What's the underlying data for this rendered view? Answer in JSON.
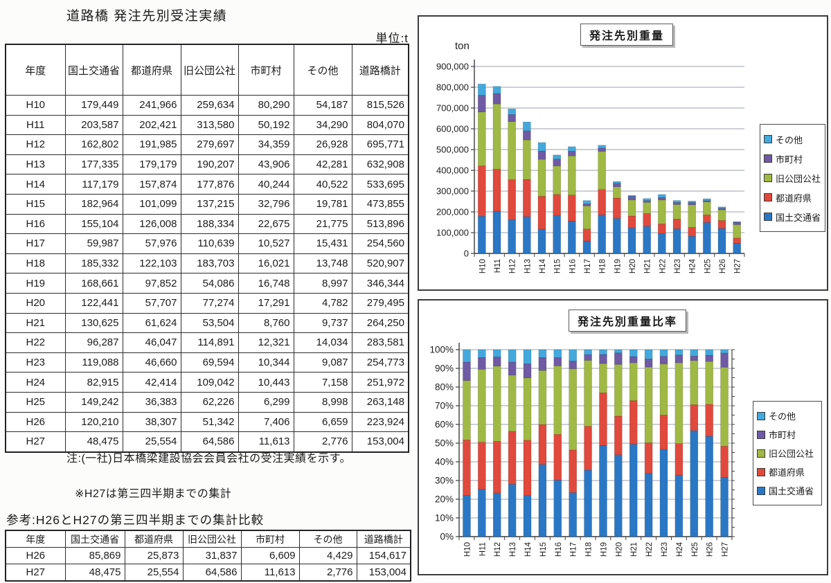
{
  "page": {
    "title": "道路橋 発注先別受注実績",
    "unit_label": "単位:t"
  },
  "main_table": {
    "headers": [
      "年度",
      "国土交通省",
      "都道府県",
      "旧公団公社",
      "市町村",
      "その他",
      "道路橋計"
    ],
    "rows": [
      [
        "H10",
        "179,449",
        "241,966",
        "259,634",
        "80,290",
        "54,187",
        "815,526"
      ],
      [
        "H11",
        "203,587",
        "202,421",
        "313,580",
        "50,192",
        "34,290",
        "804,070"
      ],
      [
        "H12",
        "162,802",
        "191,985",
        "279,697",
        "34,359",
        "26,928",
        "695,771"
      ],
      [
        "H13",
        "177,335",
        "179,179",
        "190,207",
        "43,906",
        "42,281",
        "632,908"
      ],
      [
        "H14",
        "117,179",
        "157,874",
        "177,876",
        "40,244",
        "40,522",
        "533,695"
      ],
      [
        "H15",
        "182,964",
        "101,099",
        "137,215",
        "32,796",
        "19,781",
        "473,855"
      ],
      [
        "H16",
        "155,104",
        "126,008",
        "188,334",
        "22,675",
        "21,775",
        "513,896"
      ],
      [
        "H17",
        "59,987",
        "57,976",
        "110,639",
        "10,527",
        "15,431",
        "254,560"
      ],
      [
        "H18",
        "185,332",
        "122,103",
        "183,703",
        "16,021",
        "13,748",
        "520,907"
      ],
      [
        "H19",
        "168,661",
        "97,852",
        "54,086",
        "16,748",
        "8,997",
        "346,344"
      ],
      [
        "H20",
        "122,441",
        "57,707",
        "77,274",
        "17,291",
        "4,782",
        "279,495"
      ],
      [
        "H21",
        "130,625",
        "61,624",
        "53,504",
        "8,760",
        "9,737",
        "264,250"
      ],
      [
        "H22",
        "96,287",
        "46,047",
        "114,891",
        "12,321",
        "14,034",
        "283,581"
      ],
      [
        "H23",
        "119,088",
        "46,660",
        "69,594",
        "10,344",
        "9,087",
        "254,773"
      ],
      [
        "H24",
        "82,915",
        "42,414",
        "109,042",
        "10,443",
        "7,158",
        "251,972"
      ],
      [
        "H25",
        "149,242",
        "36,383",
        "62,226",
        "6,299",
        "8,998",
        "263,148"
      ],
      [
        "H26",
        "120,210",
        "38,307",
        "51,342",
        "7,406",
        "6,659",
        "223,924"
      ],
      [
        "H27",
        "48,475",
        "25,554",
        "64,586",
        "11,613",
        "2,776",
        "153,004"
      ]
    ]
  },
  "notes": {
    "note1": "注:(一社)日本橋梁建設協会会員会社の受注実績を示す。",
    "note2": "※H27は第三四半期までの集計"
  },
  "reference": {
    "heading": "参考:H26とH27の第三四半期までの集計比較",
    "headers": [
      "年度",
      "国土交通省",
      "都道府県",
      "旧公団公社",
      "市町村",
      "その他",
      "道路橋計"
    ],
    "rows": [
      [
        "H26",
        "85,869",
        "25,873",
        "31,837",
        "6,609",
        "4,429",
        "154,617"
      ],
      [
        "H27",
        "48,475",
        "25,554",
        "64,586",
        "11,613",
        "2,776",
        "153,004"
      ]
    ]
  },
  "chart_data": [
    {
      "type": "bar",
      "stacked": true,
      "percent": false,
      "title": "発注先別重量",
      "ylabel": "ton",
      "ylim": [
        0,
        900000
      ],
      "ytick_step": 100000,
      "grid": true,
      "legend_position": "right",
      "categories": [
        "H10",
        "H11",
        "H12",
        "H13",
        "H14",
        "H15",
        "H16",
        "H17",
        "H18",
        "H19",
        "H20",
        "H21",
        "H22",
        "H23",
        "H24",
        "H25",
        "H26",
        "H27"
      ],
      "series": [
        {
          "name": "国土交通省",
          "color": "#2a78c5",
          "values": [
            179449,
            203587,
            162802,
            177335,
            117179,
            182964,
            155104,
            59987,
            185332,
            168661,
            122441,
            130625,
            96287,
            119088,
            82915,
            149242,
            120210,
            48475
          ]
        },
        {
          "name": "都道府県",
          "color": "#e0493c",
          "values": [
            241966,
            202421,
            191985,
            179179,
            157874,
            101099,
            126008,
            57976,
            122103,
            97852,
            57707,
            61624,
            46047,
            46660,
            42414,
            36383,
            38307,
            25554
          ]
        },
        {
          "name": "旧公団公社",
          "color": "#a0b944",
          "values": [
            259634,
            313580,
            279697,
            190207,
            177876,
            137215,
            188334,
            110639,
            183703,
            54086,
            77274,
            53504,
            114891,
            69594,
            109042,
            62226,
            51342,
            64586
          ]
        },
        {
          "name": "市町村",
          "color": "#6e5aa5",
          "values": [
            80290,
            50192,
            34359,
            43906,
            40244,
            32796,
            22675,
            10527,
            16021,
            16748,
            17291,
            8760,
            12321,
            10344,
            10443,
            6299,
            7406,
            11613
          ]
        },
        {
          "name": "その他",
          "color": "#43a9dc",
          "values": [
            54187,
            34290,
            26928,
            42281,
            40522,
            19781,
            21775,
            15431,
            13748,
            8997,
            4782,
            9737,
            14034,
            9087,
            7158,
            8998,
            6659,
            2776
          ]
        }
      ],
      "legend_order": [
        "その他",
        "市町村",
        "旧公団公社",
        "都道府県",
        "国土交通省"
      ]
    },
    {
      "type": "bar",
      "stacked": true,
      "percent": true,
      "title": "発注先別重量比率",
      "ylabel": "",
      "ylim": [
        0,
        100
      ],
      "ytick_step": 10,
      "grid": true,
      "legend_position": "right",
      "categories": [
        "H10",
        "H11",
        "H12",
        "H13",
        "H14",
        "H15",
        "H16",
        "H17",
        "H18",
        "H19",
        "H20",
        "H21",
        "H22",
        "H23",
        "H24",
        "H25",
        "H26",
        "H27"
      ],
      "series": [
        {
          "name": "国土交通省",
          "color": "#2a78c5",
          "values": [
            179449,
            203587,
            162802,
            177335,
            117179,
            182964,
            155104,
            59987,
            185332,
            168661,
            122441,
            130625,
            96287,
            119088,
            82915,
            149242,
            120210,
            48475
          ]
        },
        {
          "name": "都道府県",
          "color": "#e0493c",
          "values": [
            241966,
            202421,
            191985,
            179179,
            157874,
            101099,
            126008,
            57976,
            122103,
            97852,
            57707,
            61624,
            46047,
            46660,
            42414,
            36383,
            38307,
            25554
          ]
        },
        {
          "name": "旧公団公社",
          "color": "#a0b944",
          "values": [
            259634,
            313580,
            279697,
            190207,
            177876,
            137215,
            188334,
            110639,
            183703,
            54086,
            77274,
            53504,
            114891,
            69594,
            109042,
            62226,
            51342,
            64586
          ]
        },
        {
          "name": "市町村",
          "color": "#6e5aa5",
          "values": [
            80290,
            50192,
            34359,
            43906,
            40244,
            32796,
            22675,
            10527,
            16021,
            16748,
            17291,
            8760,
            12321,
            10344,
            10443,
            6299,
            7406,
            11613
          ]
        },
        {
          "name": "その他",
          "color": "#43a9dc",
          "values": [
            54187,
            34290,
            26928,
            42281,
            40522,
            19781,
            21775,
            15431,
            13748,
            8997,
            4782,
            9737,
            14034,
            9087,
            7158,
            8998,
            6659,
            2776
          ]
        }
      ],
      "legend_order": [
        "その他",
        "市町村",
        "旧公団公社",
        "都道府県",
        "国土交通省"
      ]
    }
  ]
}
